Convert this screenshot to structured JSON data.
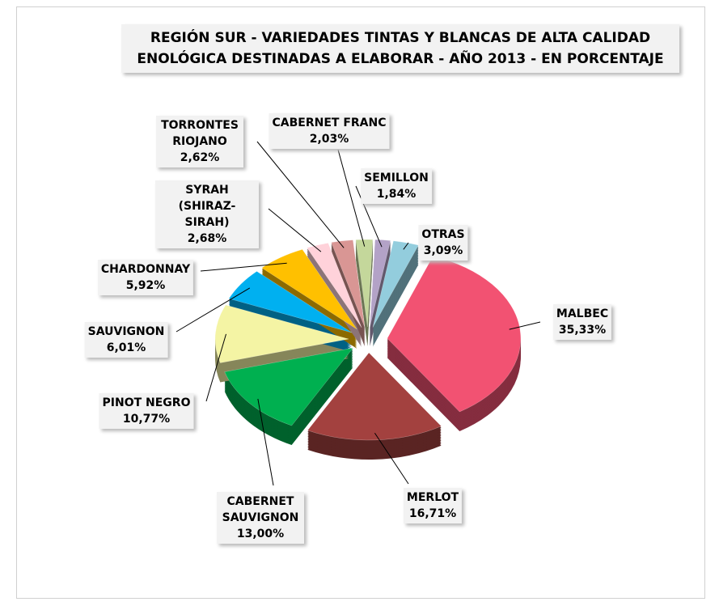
{
  "chart_data": {
    "type": "pie",
    "title": "REGIÓN SUR - VARIEDADES TINTAS Y BLANCAS DE ALTA CALIDAD ENOLÓGICA DESTINADAS A ELABORAR - AÑO 2013 - EN PORCENTAJE",
    "categories": [
      "MALBEC",
      "MERLOT",
      "CABERNET SAUVIGNON",
      "PINOT NEGRO",
      "SAUVIGNON",
      "CHARDONNAY",
      "SYRAH (SHIRAZ-SIRAH)",
      "TORRONTES RIOJANO",
      "CABERNET FRANC",
      "SEMILLON",
      "OTRAS"
    ],
    "values": [
      35.33,
      16.71,
      13.0,
      10.77,
      6.01,
      5.92,
      2.68,
      2.62,
      2.03,
      1.84,
      3.09
    ],
    "value_labels": [
      "35,33%",
      "16,71%",
      "13,00%",
      "10,77%",
      "6,01%",
      "5,92%",
      "2,68%",
      "2,62%",
      "2,03%",
      "1,84%",
      "3,09%"
    ],
    "colors": [
      "#f25272",
      "#a3413f",
      "#00b050",
      "#f4f4a4",
      "#00b0f0",
      "#ffc000",
      "#ffd2da",
      "#d99694",
      "#c4d79b",
      "#b3a2c7",
      "#93cddd"
    ]
  }
}
